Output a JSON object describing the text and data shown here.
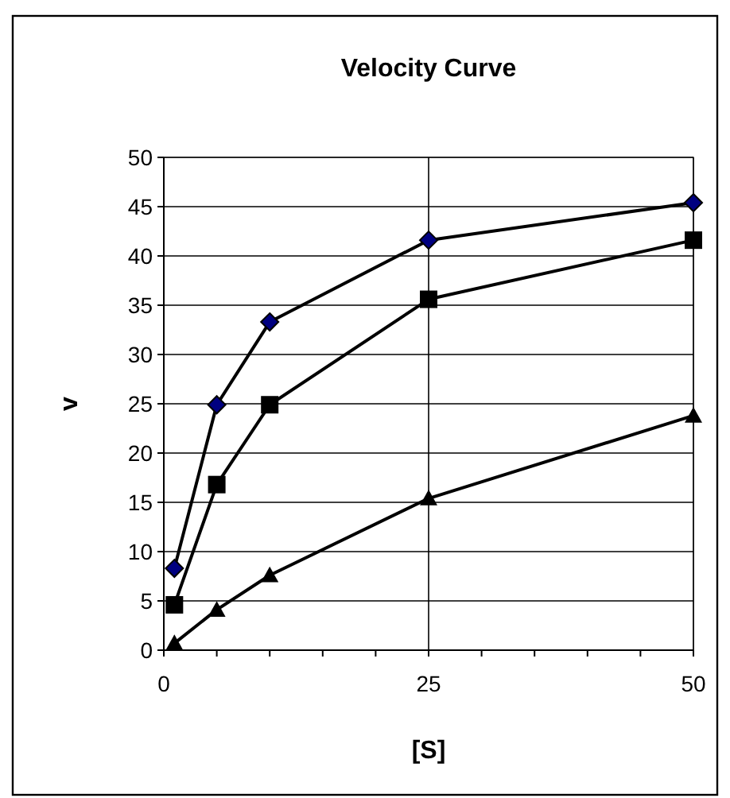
{
  "chart_data": {
    "type": "line",
    "title": "Velocity Curve",
    "xlabel": "[S]",
    "ylabel": "v",
    "x": [
      1,
      5,
      10,
      25,
      50
    ],
    "series": [
      {
        "color": "#000080",
        "marker": "diamond",
        "values": [
          8.3,
          24.9,
          33.3,
          41.6,
          45.4
        ]
      },
      {
        "color": "#000000",
        "marker": "square",
        "values": [
          4.6,
          16.8,
          24.9,
          35.6,
          41.6
        ]
      },
      {
        "color": "#000000",
        "marker": "triangle",
        "values": [
          0.7,
          4.1,
          7.6,
          15.4,
          23.8
        ]
      }
    ],
    "xlim": [
      0,
      50
    ],
    "xticks": [
      0,
      {
        "value": 5,
        "label": null
      },
      {
        "value": 10,
        "label": null
      },
      {
        "value": 15,
        "label": null
      },
      {
        "value": 20,
        "label": null
      },
      25,
      {
        "value": 30,
        "label": null
      },
      {
        "value": 35,
        "label": null
      },
      {
        "value": 40,
        "label": null
      },
      {
        "value": 45,
        "label": null
      },
      50
    ],
    "ylim": [
      0,
      50
    ],
    "yticks": [
      0,
      5,
      10,
      15,
      20,
      25,
      30,
      35,
      40,
      45,
      50
    ],
    "grid": true
  }
}
